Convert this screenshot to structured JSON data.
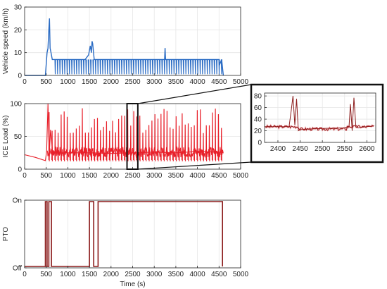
{
  "chart_data": [
    {
      "id": "speed",
      "type": "line",
      "ylabel": "Vehicle speed (km/h)",
      "xlabel": "",
      "xlim": [
        0,
        5000
      ],
      "ylim": [
        0,
        30
      ],
      "xticks": [
        "0",
        "500",
        "1000",
        "1500",
        "2000",
        "2500",
        "3000",
        "3500",
        "4000",
        "4500",
        "5000"
      ],
      "yticks": [
        "0",
        "10",
        "20",
        "30"
      ],
      "grid": true,
      "color": "#2b6cc4",
      "series": [
        {
          "x": [
            0,
            480,
            520,
            540,
            560,
            575,
            590,
            610,
            640,
            660,
            700,
            1400,
            1480,
            1520,
            1545,
            1560,
            1575,
            1590,
            1610,
            1640,
            1680,
            3240,
            3250,
            3262,
            3280,
            4500,
            4520,
            4560,
            4600
          ],
          "y": [
            0,
            0,
            10,
            12,
            20,
            25,
            12,
            10,
            7,
            7,
            7,
            7,
            9,
            13,
            10,
            15,
            14,
            11,
            7,
            7,
            7,
            7,
            12,
            7,
            7,
            7,
            5,
            7,
            0
          ]
        }
      ],
      "notes": "Repeated stop-and-go dips from ~7 km/h to ~0 km/h between 600 and 4600 s"
    },
    {
      "id": "ice_load",
      "type": "line",
      "ylabel": "ICE Load (%)",
      "xlabel": "",
      "xlim": [
        0,
        5000
      ],
      "ylim": [
        0,
        100
      ],
      "xticks": [
        "0",
        "500",
        "1000",
        "1500",
        "2000",
        "2500",
        "3000",
        "3500",
        "4000",
        "4500",
        "5000"
      ],
      "yticks": [
        "0",
        "50",
        "100"
      ],
      "grid": true,
      "color": "#e8202a",
      "series": [
        {
          "x": [
            0,
            250,
            480,
            510,
            540,
            570,
            600,
            650,
            1000,
            1500,
            2000,
            2500,
            3000,
            3500,
            4000,
            4500,
            4600
          ],
          "y": [
            22,
            18,
            13,
            28,
            100,
            20,
            60,
            25,
            25,
            25,
            24,
            25,
            26,
            25,
            27,
            26,
            25
          ]
        }
      ],
      "notes": "Baseline ~25% with frequent spikes up to ~80-95% from 500 to 4600 s"
    },
    {
      "id": "ice_load_zoom",
      "type": "line",
      "xlabel": "",
      "ylabel": "",
      "xlim": [
        2370,
        2620
      ],
      "ylim": [
        0,
        85
      ],
      "xticks": [
        "2400",
        "2450",
        "2500",
        "2550",
        "2600"
      ],
      "yticks": [
        "0",
        "20",
        "40",
        "60",
        "80"
      ],
      "grid": true,
      "color": "#8b1a1a",
      "series": [
        {
          "x": [
            2370,
            2400,
            2425,
            2430,
            2434,
            2438,
            2442,
            2446,
            2450,
            2470,
            2500,
            2550,
            2560,
            2563,
            2567,
            2571,
            2575,
            2580,
            2600,
            2615
          ],
          "y": [
            27,
            27,
            27,
            55,
            80,
            30,
            75,
            20,
            22,
            23,
            24,
            25,
            28,
            66,
            20,
            77,
            30,
            25,
            27,
            28
          ]
        }
      ]
    },
    {
      "id": "pto",
      "type": "line",
      "ylabel": "PTO",
      "xlabel": "Time (s)",
      "xlim": [
        0,
        5000
      ],
      "xticks": [
        "0",
        "500",
        "1000",
        "1500",
        "2000",
        "2500",
        "3000",
        "3500",
        "4000",
        "4500",
        "5000"
      ],
      "yticks": [
        "Off",
        "On"
      ],
      "grid": true,
      "color": "#8b1a1a",
      "series": [
        {
          "x": [
            0,
            480,
            480,
            520,
            520,
            560,
            560,
            620,
            620,
            1500,
            1500,
            1600,
            1600,
            1700,
            1700,
            4580,
            4580
          ],
          "y": [
            0,
            0,
            1,
            1,
            0,
            0,
            1,
            1,
            0,
            0,
            1,
            1,
            0,
            0,
            1,
            1,
            0
          ]
        }
      ]
    }
  ]
}
